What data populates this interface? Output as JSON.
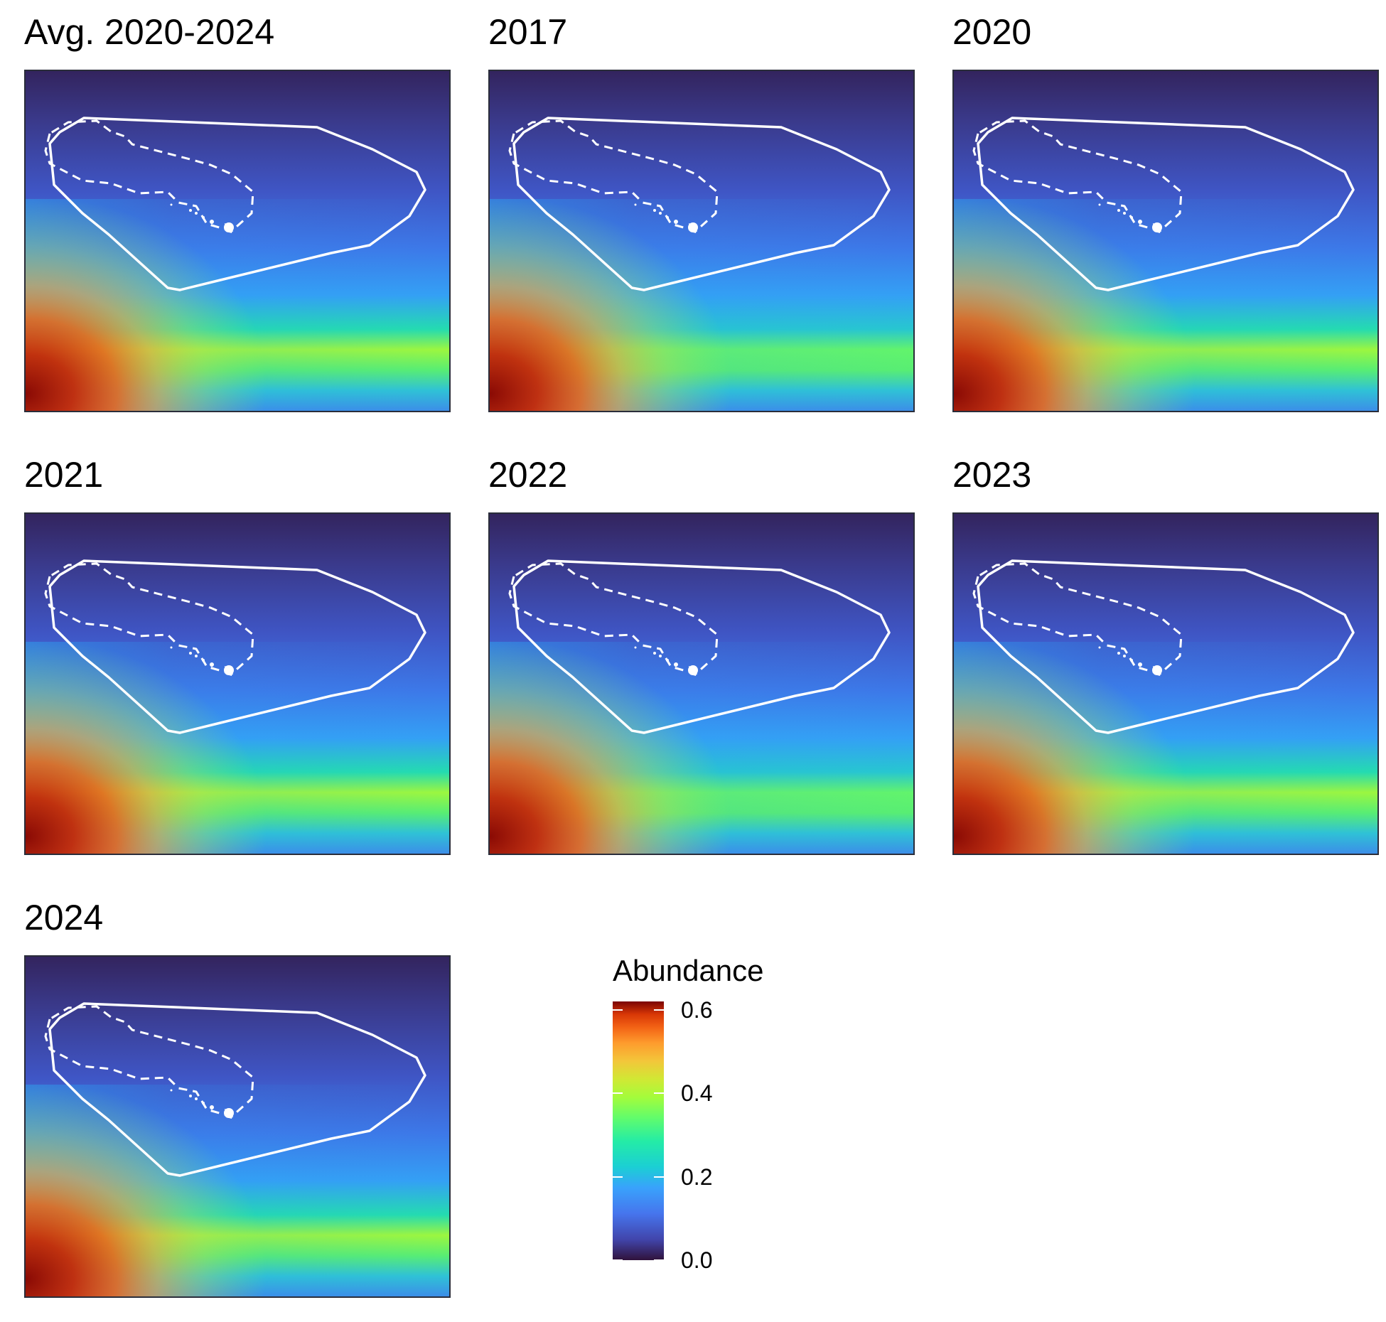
{
  "chart_data": {
    "type": "heatmap",
    "description_of_layout": "small multiples",
    "panels": [
      {
        "title": "Avg. 2020-2024",
        "peak_abundance": 0.6,
        "band_intensity": 0.85
      },
      {
        "title": "2017",
        "peak_abundance": 0.62,
        "band_intensity": 0.75
      },
      {
        "title": "2020",
        "peak_abundance": 0.62,
        "band_intensity": 0.85
      },
      {
        "title": "2021",
        "peak_abundance": 0.62,
        "band_intensity": 0.85
      },
      {
        "title": "2022",
        "peak_abundance": 0.62,
        "band_intensity": 0.8
      },
      {
        "title": "2023",
        "peak_abundance": 0.58,
        "band_intensity": 0.9
      },
      {
        "title": "2024",
        "peak_abundance": 0.55,
        "band_intensity": 0.85
      }
    ],
    "legend": {
      "title": "Abundance",
      "ticks": [
        "0.0",
        "0.2",
        "0.4",
        "0.6"
      ],
      "tick_values": [
        0.0,
        0.2,
        0.4,
        0.6
      ],
      "range": [
        0.0,
        0.62
      ],
      "colormap": "turbo"
    },
    "overlays": [
      "solid boundary polygon (white)",
      "dashed inner boundary (white)"
    ]
  },
  "colors": {
    "outline": "#ffffff",
    "panel_border": "#2a2d3a",
    "low": "#30123b",
    "mid_low": "#3e5fd8",
    "mid": "#1ec7d4",
    "mid_high": "#a4fc3c",
    "high": "#fb8022",
    "max": "#7a0403"
  }
}
